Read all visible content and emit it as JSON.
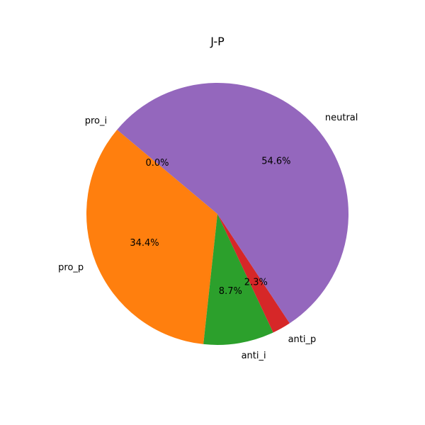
{
  "chart_data": {
    "type": "pie",
    "title": "J-P",
    "start_angle_deg": 140,
    "direction": "counterclockwise",
    "slices": [
      {
        "label": "pro_i",
        "value": 0.0,
        "pct_label": "0.0%",
        "color": "#1f77b4"
      },
      {
        "label": "pro_p",
        "value": 34.4,
        "pct_label": "34.4%",
        "color": "#ff7f0e"
      },
      {
        "label": "anti_i",
        "value": 8.7,
        "pct_label": "8.7%",
        "color": "#2ca02c"
      },
      {
        "label": "anti_p",
        "value": 2.3,
        "pct_label": "2.3%",
        "color": "#d62728"
      },
      {
        "label": "neutral",
        "value": 54.6,
        "pct_label": "54.6%",
        "color": "#9467bd"
      }
    ]
  }
}
